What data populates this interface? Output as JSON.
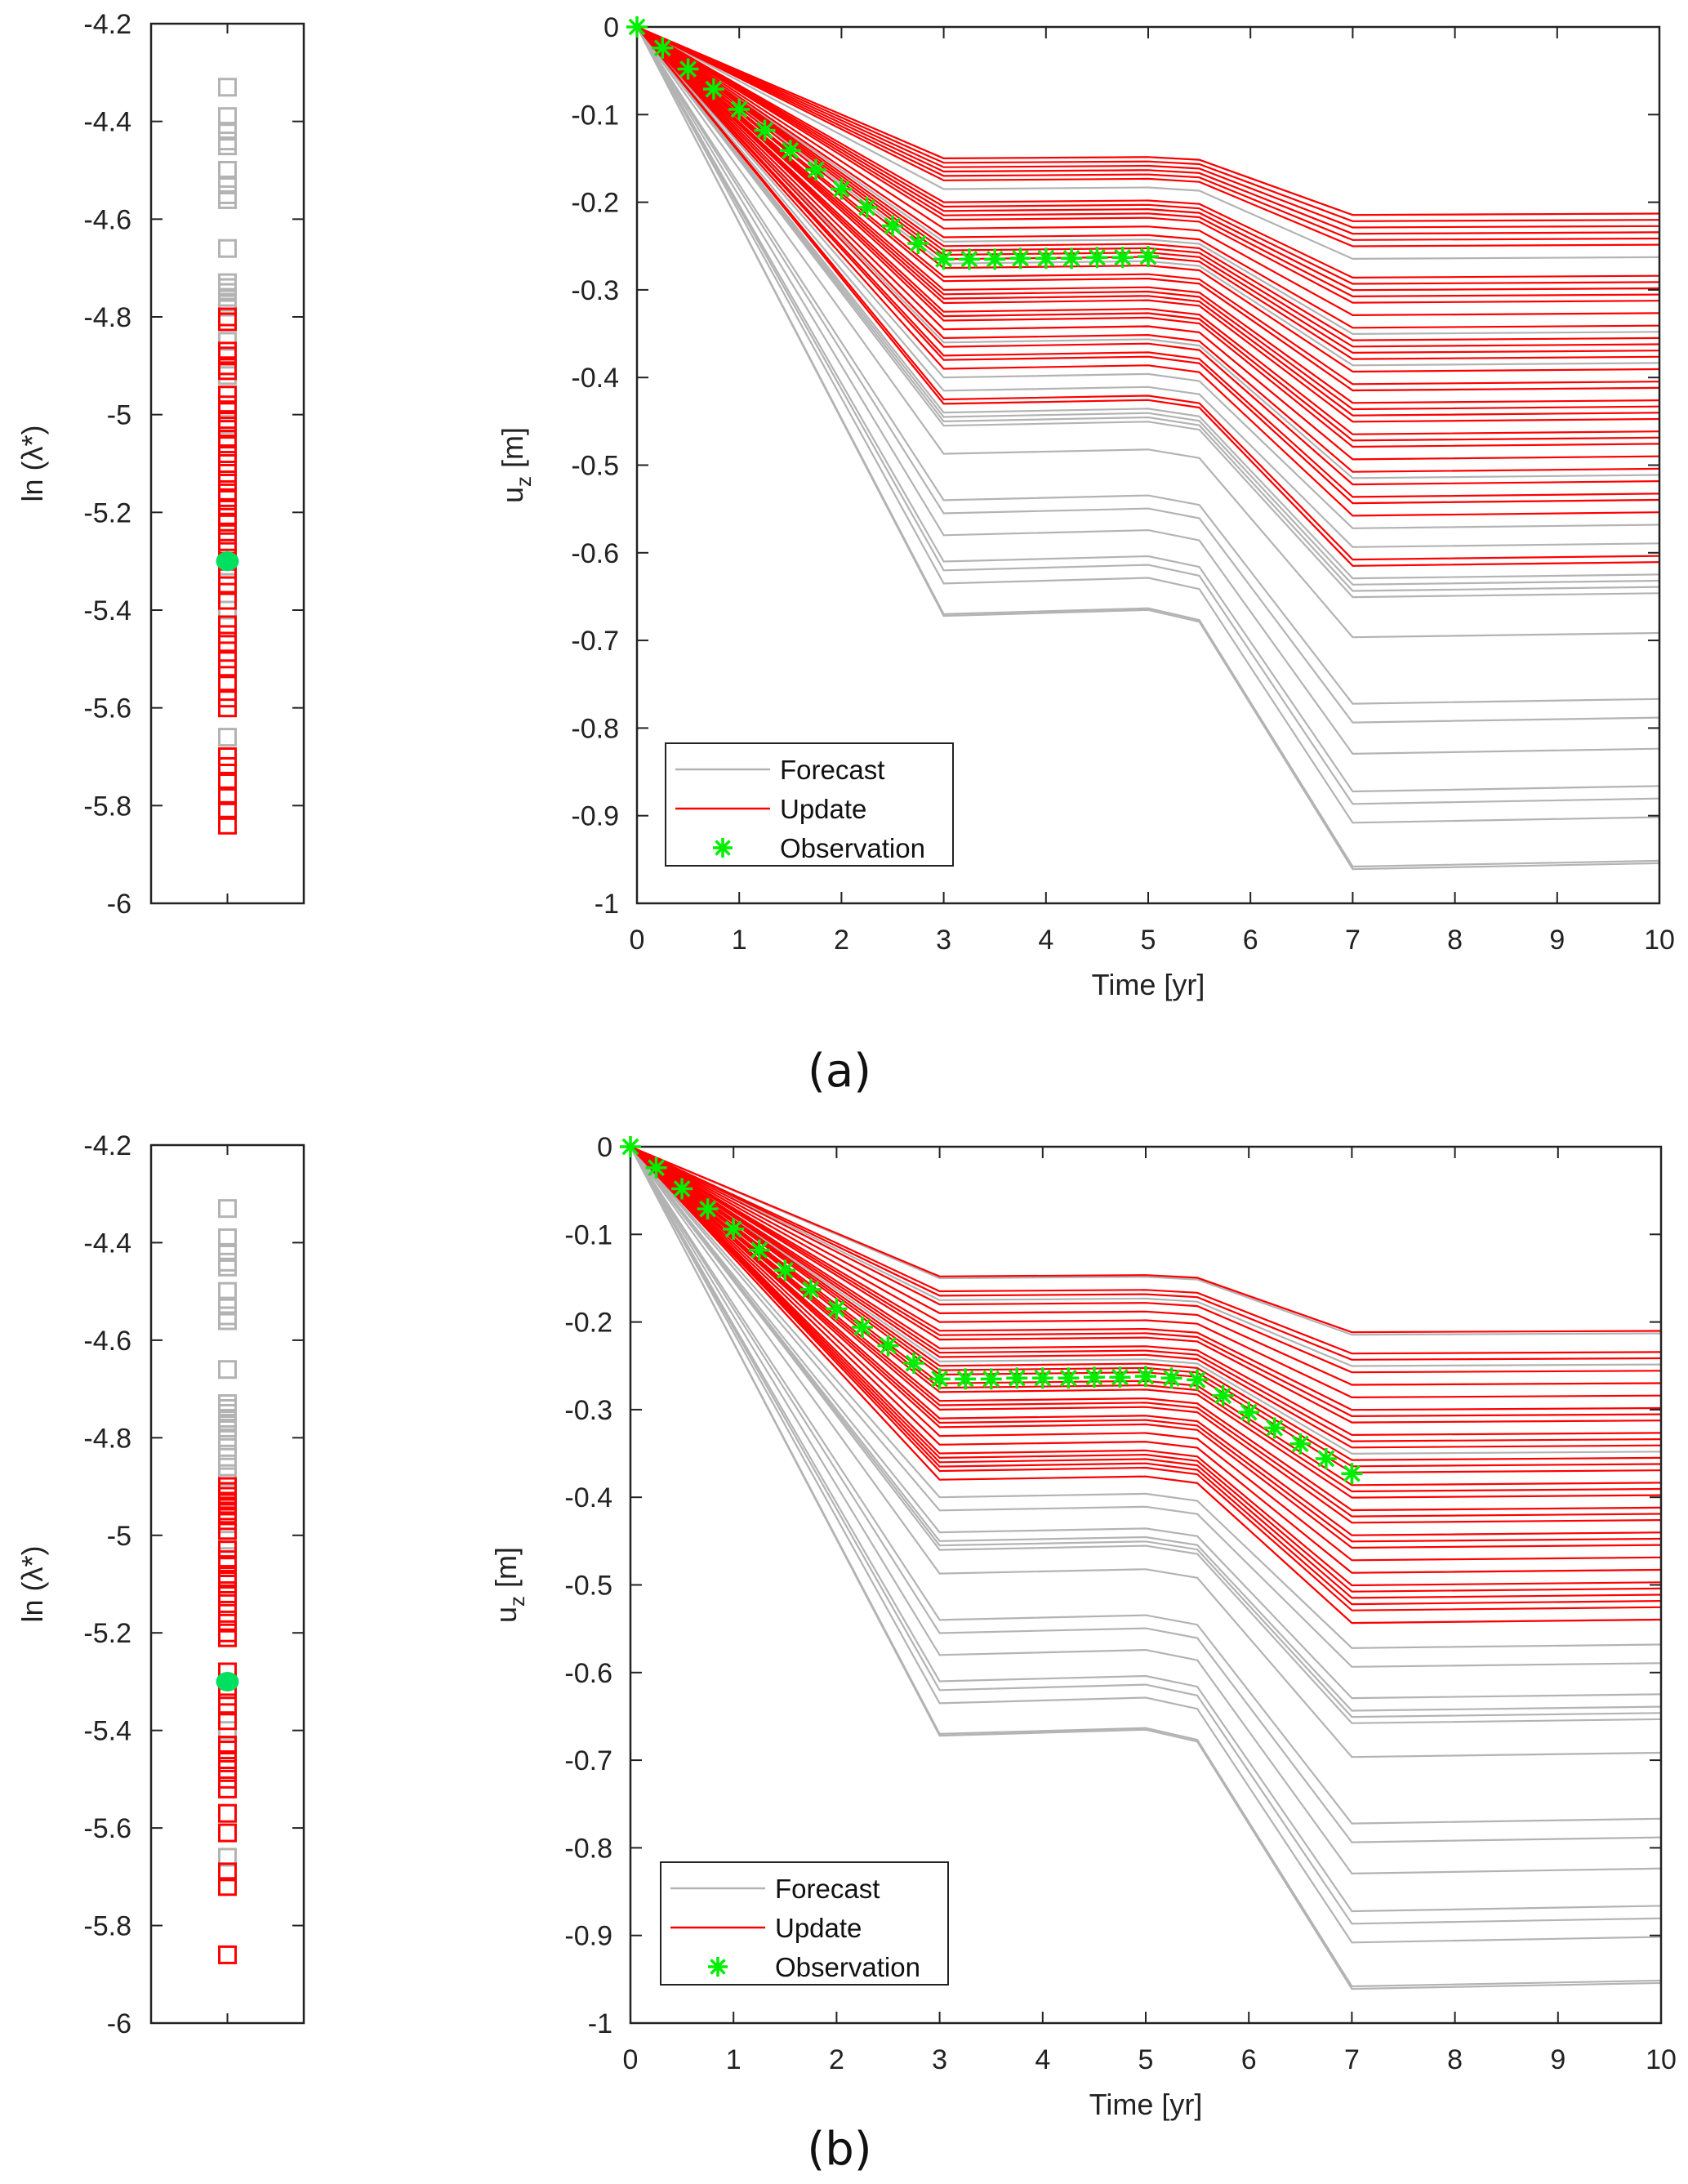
{
  "colors": {
    "forecast": "#b3b3b3",
    "update": "#ff0000",
    "observation": "#00ee00",
    "true_value": "#00e060",
    "axis": "#222222"
  },
  "chart_data": [
    {
      "id": "a",
      "caption": "(a)",
      "strip": {
        "type": "scatter",
        "ylabel": "ln (λ*)",
        "ylim": [
          -6,
          -4.2
        ],
        "yticks": [
          -4.2,
          -4.4,
          -4.6,
          -4.8,
          -5,
          -5.2,
          -5.4,
          -5.6,
          -5.8,
          -6
        ],
        "ytick_labels": [
          "-4.2",
          "-4.4",
          "-4.6",
          "-4.8",
          "-5",
          "-5.2",
          "-5.4",
          "-5.6",
          "-5.8",
          "-6"
        ],
        "forecast_values": [
          -4.33,
          -4.39,
          -4.42,
          -4.44,
          -4.45,
          -4.5,
          -4.53,
          -4.55,
          -4.56,
          -4.66,
          -4.73,
          -4.74,
          -4.75,
          -4.76,
          -4.77,
          -4.78,
          -4.85,
          -4.88,
          -4.9,
          -4.92,
          -4.96,
          -5.02,
          -5.05,
          -5.1,
          -5.14,
          -5.22,
          -5.31,
          -5.38,
          -5.4,
          -5.66
        ],
        "update_values": [
          -4.8,
          -4.81,
          -4.87,
          -4.88,
          -4.9,
          -4.91,
          -4.96,
          -4.98,
          -4.99,
          -5.01,
          -5.03,
          -5.05,
          -5.06,
          -5.08,
          -5.1,
          -5.12,
          -5.14,
          -5.16,
          -5.17,
          -5.19,
          -5.21,
          -5.22,
          -5.24,
          -5.26,
          -5.28,
          -5.3,
          -5.33,
          -5.35,
          -5.38,
          -5.43,
          -5.45,
          -5.47,
          -5.5,
          -5.52,
          -5.55,
          -5.58,
          -5.6,
          -5.7,
          -5.72,
          -5.75,
          -5.78,
          -5.81,
          -5.84
        ],
        "true_value": -5.3
      },
      "main": {
        "type": "line",
        "xlabel": "Time [yr]",
        "ylabel": "u",
        "ylabel_sub": "z",
        "ylabel_unit": " [m]",
        "xlim": [
          0,
          10
        ],
        "ylim": [
          -1,
          0
        ],
        "xticks": [
          0,
          1,
          2,
          3,
          4,
          5,
          6,
          7,
          8,
          9,
          10
        ],
        "xtick_labels": [
          "0",
          "1",
          "2",
          "3",
          "4",
          "5",
          "6",
          "7",
          "8",
          "9",
          "10"
        ],
        "yticks": [
          0,
          -0.1,
          -0.2,
          -0.3,
          -0.4,
          -0.5,
          -0.6,
          -0.7,
          -0.8,
          -0.9,
          -1
        ],
        "ytick_labels": [
          "0",
          "-0.1",
          "-0.2",
          "-0.3",
          "-0.4",
          "-0.5",
          "-0.6",
          "-0.7",
          "-0.8",
          "-0.9",
          "-1"
        ],
        "trajectory_time_knots": [
          0,
          3,
          5,
          5.5,
          7,
          10
        ],
        "trajectory_shape_factors": [
          0,
          1,
          0.99,
          1.01,
          1.43,
          1.42
        ],
        "forecast_u3": [
          -0.15,
          -0.165,
          -0.185,
          -0.21,
          -0.245,
          -0.27,
          -0.29,
          -0.31,
          -0.33,
          -0.345,
          -0.36,
          -0.38,
          -0.4,
          -0.415,
          -0.43,
          -0.44,
          -0.445,
          -0.45,
          -0.455,
          -0.487,
          -0.54,
          -0.555,
          -0.58,
          -0.61,
          -0.62,
          -0.635,
          -0.67,
          -0.672
        ],
        "update_u3": [
          -0.15,
          -0.155,
          -0.16,
          -0.165,
          -0.17,
          -0.175,
          -0.2,
          -0.205,
          -0.21,
          -0.215,
          -0.22,
          -0.23,
          -0.24,
          -0.25,
          -0.255,
          -0.26,
          -0.265,
          -0.275,
          -0.285,
          -0.29,
          -0.3,
          -0.305,
          -0.31,
          -0.315,
          -0.325,
          -0.33,
          -0.335,
          -0.345,
          -0.355,
          -0.365,
          -0.375,
          -0.38,
          -0.39,
          -0.425,
          -0.43
        ],
        "observations": {
          "t": [
            0,
            0.25,
            0.5,
            0.75,
            1,
            1.25,
            1.5,
            1.75,
            2,
            2.25,
            2.5,
            2.75,
            3,
            3.25,
            3.5,
            3.75,
            4,
            4.25,
            4.5,
            4.75,
            5
          ],
          "u": [
            0,
            -0.024,
            -0.048,
            -0.071,
            -0.094,
            -0.118,
            -0.141,
            -0.163,
            -0.185,
            -0.206,
            -0.227,
            -0.247,
            -0.265,
            -0.265,
            -0.265,
            -0.264,
            -0.264,
            -0.264,
            -0.263,
            -0.263,
            -0.262
          ]
        },
        "legend": {
          "position": "bottom-left",
          "entries": [
            {
              "label": "Forecast",
              "marker": "line",
              "color": "#b3b3b3"
            },
            {
              "label": "Update",
              "marker": "line",
              "color": "#ff0000"
            },
            {
              "label": "Observation",
              "marker": "asterisk",
              "color": "#00ee00"
            }
          ]
        }
      }
    },
    {
      "id": "b",
      "caption": "(b)",
      "strip": {
        "type": "scatter",
        "ylabel": "ln (λ*)",
        "ylim": [
          -6,
          -4.2
        ],
        "yticks": [
          -4.2,
          -4.4,
          -4.6,
          -4.8,
          -5,
          -5.2,
          -5.4,
          -5.6,
          -5.8,
          -6
        ],
        "ytick_labels": [
          "-4.2",
          "-4.4",
          "-4.6",
          "-4.8",
          "-5",
          "-5.2",
          "-5.4",
          "-5.6",
          "-5.8",
          "-6"
        ],
        "forecast_values": [
          -4.33,
          -4.39,
          -4.42,
          -4.44,
          -4.45,
          -4.5,
          -4.53,
          -4.55,
          -4.56,
          -4.66,
          -4.73,
          -4.74,
          -4.75,
          -4.76,
          -4.77,
          -4.78,
          -4.8,
          -4.82,
          -4.84,
          -4.86,
          -4.88,
          -5.01,
          -5.28,
          -5.4,
          -5.66
        ],
        "update_values": [
          -4.9,
          -4.91,
          -4.92,
          -4.93,
          -4.94,
          -4.95,
          -4.96,
          -4.97,
          -4.99,
          -5.03,
          -5.05,
          -5.06,
          -5.08,
          -5.09,
          -5.1,
          -5.12,
          -5.14,
          -5.16,
          -5.18,
          -5.2,
          -5.21,
          -5.28,
          -5.31,
          -5.33,
          -5.35,
          -5.38,
          -5.43,
          -5.44,
          -5.46,
          -5.48,
          -5.5,
          -5.52,
          -5.57,
          -5.61,
          -5.69,
          -5.72,
          -5.86
        ],
        "true_value": -5.3
      },
      "main": {
        "type": "line",
        "xlabel": "Time [yr]",
        "ylabel": "u",
        "ylabel_sub": "z",
        "ylabel_unit": " [m]",
        "xlim": [
          0,
          10
        ],
        "ylim": [
          -1,
          0
        ],
        "xticks": [
          0,
          1,
          2,
          3,
          4,
          5,
          6,
          7,
          8,
          9,
          10
        ],
        "xtick_labels": [
          "0",
          "1",
          "2",
          "3",
          "4",
          "5",
          "6",
          "7",
          "8",
          "9",
          "10"
        ],
        "yticks": [
          0,
          -0.1,
          -0.2,
          -0.3,
          -0.4,
          -0.5,
          -0.6,
          -0.7,
          -0.8,
          -0.9,
          -1
        ],
        "ytick_labels": [
          "0",
          "-0.1",
          "-0.2",
          "-0.3",
          "-0.4",
          "-0.5",
          "-0.6",
          "-0.7",
          "-0.8",
          "-0.9",
          "-1"
        ],
        "trajectory_time_knots": [
          0,
          3,
          5,
          5.5,
          7,
          10
        ],
        "trajectory_shape_factors": [
          0,
          1,
          0.99,
          1.01,
          1.43,
          1.42
        ],
        "forecast_u3": [
          -0.15,
          -0.175,
          -0.19,
          -0.22,
          -0.245,
          -0.29,
          -0.31,
          -0.34,
          -0.38,
          -0.4,
          -0.415,
          -0.44,
          -0.45,
          -0.455,
          -0.46,
          -0.487,
          -0.54,
          -0.555,
          -0.58,
          -0.61,
          -0.62,
          -0.635,
          -0.67,
          -0.672
        ],
        "update_u3": [
          -0.148,
          -0.165,
          -0.17,
          -0.18,
          -0.19,
          -0.2,
          -0.21,
          -0.215,
          -0.22,
          -0.23,
          -0.235,
          -0.24,
          -0.25,
          -0.255,
          -0.26,
          -0.27,
          -0.275,
          -0.28,
          -0.29,
          -0.295,
          -0.3,
          -0.31,
          -0.315,
          -0.32,
          -0.33,
          -0.34,
          -0.35,
          -0.355,
          -0.36,
          -0.365,
          -0.37,
          -0.38
        ],
        "observations": {
          "t": [
            0,
            0.25,
            0.5,
            0.75,
            1,
            1.25,
            1.5,
            1.75,
            2,
            2.25,
            2.5,
            2.75,
            3,
            3.25,
            3.5,
            3.75,
            4,
            4.25,
            4.5,
            4.75,
            5,
            5.25,
            5.5,
            5.75,
            6,
            6.25,
            6.5,
            6.75,
            7
          ],
          "u": [
            0,
            -0.024,
            -0.048,
            -0.071,
            -0.094,
            -0.118,
            -0.141,
            -0.163,
            -0.185,
            -0.206,
            -0.227,
            -0.247,
            -0.265,
            -0.265,
            -0.265,
            -0.264,
            -0.264,
            -0.264,
            -0.263,
            -0.263,
            -0.262,
            -0.264,
            -0.266,
            -0.284,
            -0.303,
            -0.321,
            -0.339,
            -0.356,
            -0.373
          ]
        },
        "legend": {
          "position": "bottom-left",
          "entries": [
            {
              "label": "Forecast",
              "marker": "line",
              "color": "#b3b3b3"
            },
            {
              "label": "Update",
              "marker": "line",
              "color": "#ff0000"
            },
            {
              "label": "Observation",
              "marker": "asterisk",
              "color": "#00ee00"
            }
          ]
        }
      }
    }
  ]
}
